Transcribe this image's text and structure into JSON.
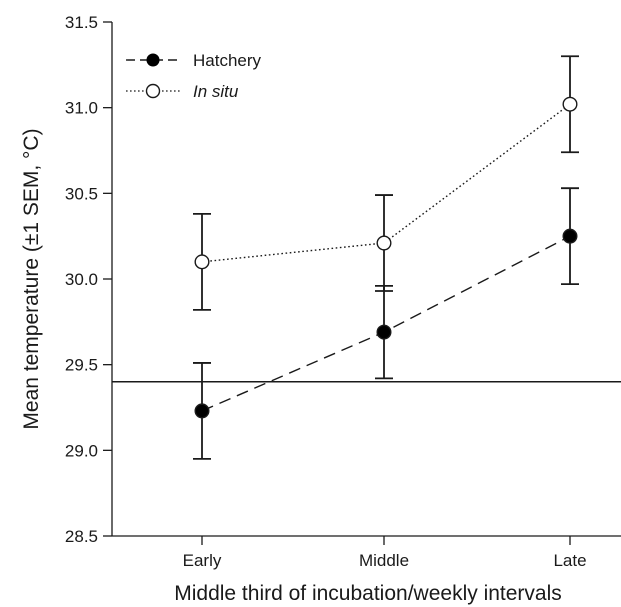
{
  "chart_data": {
    "type": "line",
    "xlabel": "Middle third of incubation/weekly intervals",
    "ylabel": "Mean temperature (±1 SEM, °C)",
    "categories": [
      "Early",
      "Middle",
      "Late"
    ],
    "ylim": [
      28.5,
      31.5
    ],
    "yticks": [
      "28.5",
      "29.0",
      "29.5",
      "30.0",
      "30.5",
      "31.0",
      "31.5"
    ],
    "grid": false,
    "legend_position": "top-left",
    "reference_line": 29.4,
    "series": [
      {
        "name": "Hatchery",
        "marker": "filled-circle",
        "line_style": "dashed",
        "values": [
          29.23,
          29.69,
          30.25
        ],
        "sem": [
          0.28,
          0.27,
          0.28
        ]
      },
      {
        "name": "In situ",
        "marker": "open-circle",
        "line_style": "dotted",
        "values": [
          30.1,
          30.21,
          31.02
        ],
        "sem": [
          0.28,
          0.28,
          0.28
        ]
      }
    ],
    "colors": {
      "axis": "#1a1a1a",
      "filled_marker": "#000000",
      "open_marker_fill": "#ffffff"
    }
  }
}
